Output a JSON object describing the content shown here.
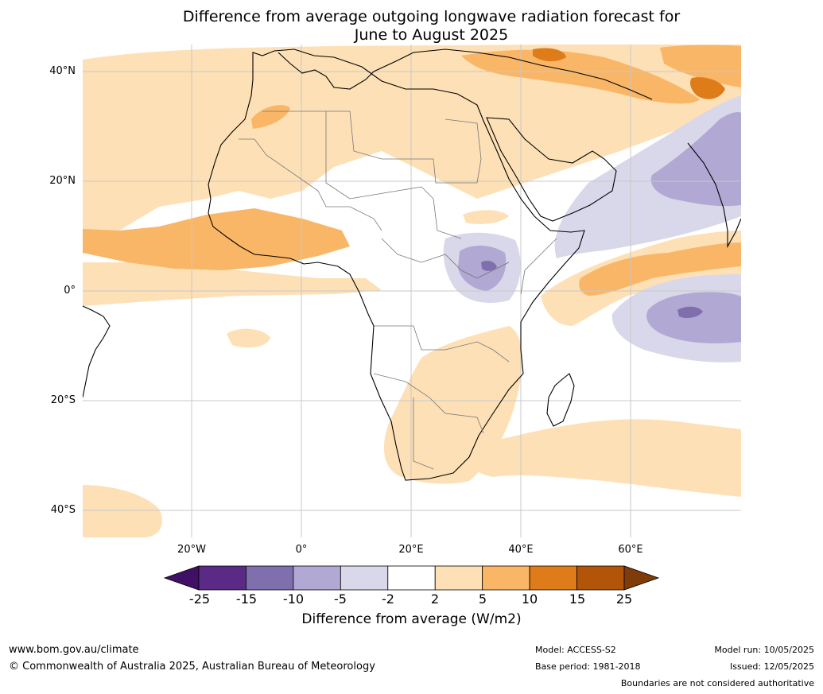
{
  "title_line1": "Difference from average outgoing longwave radiation forecast for",
  "title_line2": "June to August 2025",
  "lat_labels": [
    "40°N",
    "20°N",
    "0°",
    "20°S",
    "40°S"
  ],
  "lon_labels": [
    "20°W",
    "0°",
    "20°E",
    "40°E",
    "60°E"
  ],
  "colorbar": {
    "ticks": [
      "-25",
      "-15",
      "-10",
      "-5",
      "-2",
      "2",
      "5",
      "10",
      "15",
      "25"
    ],
    "title": "Difference from average (W/m2)",
    "colors": [
      "#3f1066",
      "#5b2a86",
      "#7f6fac",
      "#b1a8d3",
      "#d9d8ea",
      "#ffffff",
      "#fde0b6",
      "#f9b667",
      "#df7c1a",
      "#b25508",
      "#7f3b08"
    ]
  },
  "footer": {
    "url": "www.bom.gov.au/climate",
    "copyright": "© Commonwealth of Australia 2025, Australian Bureau of Meteorology",
    "model": "Model: ACCESS-S2",
    "base_period": "Base period: 1981-2018",
    "model_run": "Model run: 10/05/2025",
    "issued": "Issued: 12/05/2025",
    "disclaimer": "Boundaries are not considered authoritative"
  }
}
